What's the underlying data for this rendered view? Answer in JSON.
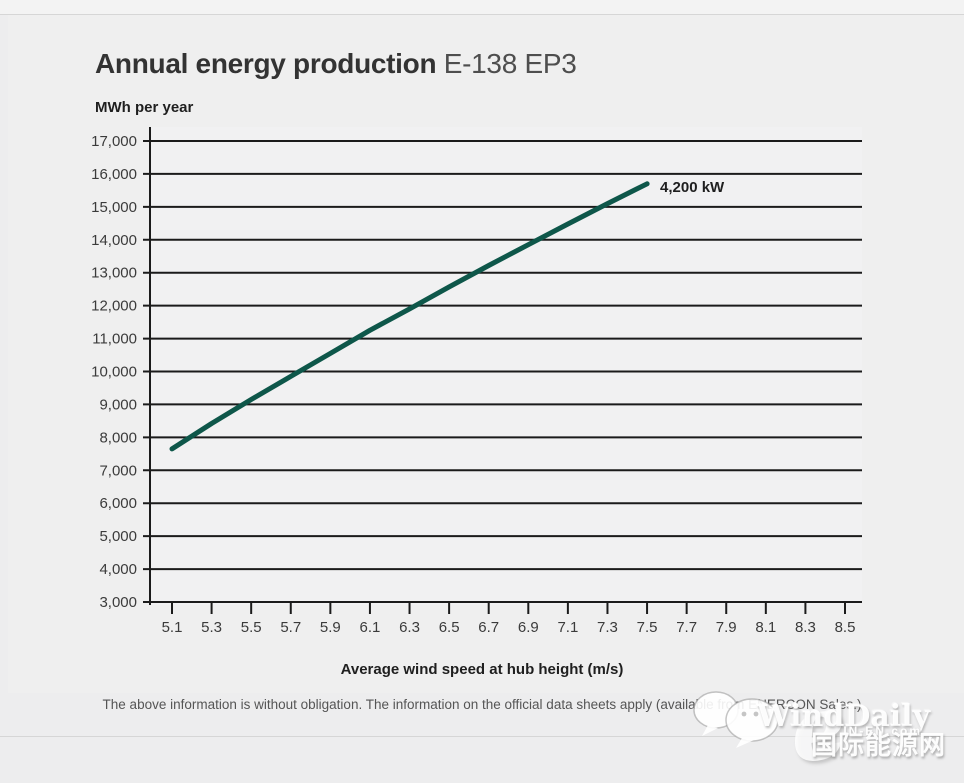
{
  "header": {
    "title_bold": "Annual energy production",
    "title_light": "E-138 EP3"
  },
  "chart": {
    "y_unit_label": "MWh per year",
    "x_axis_title": "Average wind speed at hub height (m/s)",
    "curve_label": "4,200 kW",
    "curve_color": "#0e574a",
    "axis_color": "#1b1b1b",
    "tick_label_color": "#3b3b3b"
  },
  "chart_data": {
    "type": "line",
    "title": "Annual energy production E-138 EP3",
    "xlabel": "Average wind speed at hub height (m/s)",
    "ylabel": "MWh per year",
    "series": [
      {
        "name": "4,200 kW",
        "x": [
          5.1,
          5.3,
          5.5,
          5.7,
          5.9,
          6.1,
          6.3,
          6.5,
          6.7,
          6.9,
          7.1,
          7.3,
          7.5
        ],
        "values": [
          7650,
          8420,
          9150,
          9850,
          10550,
          11250,
          11900,
          12570,
          13220,
          13850,
          14480,
          15100,
          15700
        ]
      }
    ],
    "xlim": [
      5.1,
      8.5
    ],
    "ylim": [
      3000,
      17000
    ],
    "xticks": [
      5.1,
      5.3,
      5.5,
      5.7,
      5.9,
      6.1,
      6.3,
      6.5,
      6.7,
      6.9,
      7.1,
      7.3,
      7.5,
      7.7,
      7.9,
      8.1,
      8.3,
      8.5
    ],
    "xtick_labels": [
      "5.1",
      "5.3",
      "5.5",
      "5.7",
      "5.9",
      "6.1",
      "6.3",
      "6.5",
      "6.7",
      "6.9",
      "7.1",
      "7.3",
      "7.5",
      "7.7",
      "7.9",
      "8.1",
      "8.3",
      "8.5"
    ],
    "yticks": [
      3000,
      4000,
      5000,
      6000,
      7000,
      8000,
      9000,
      10000,
      11000,
      12000,
      13000,
      14000,
      15000,
      16000,
      17000
    ],
    "ytick_labels": [
      "3,000",
      "4,000",
      "5,000",
      "6,000",
      "7,000",
      "8,000",
      "9,000",
      "10,000",
      "11,000",
      "12,000",
      "13,000",
      "14,000",
      "15,000",
      "16,000",
      "17,000"
    ],
    "grid": "horizontal",
    "legend_position": "annotation-at-line-end"
  },
  "footer": {
    "disclaimer": "The above information is without obligation. The information on the official data sheets apply (available from ENERCON Sales.)"
  },
  "watermark": {
    "brand": "WindDaily",
    "site": "IN-EN.com",
    "cn": "国际能源网"
  }
}
